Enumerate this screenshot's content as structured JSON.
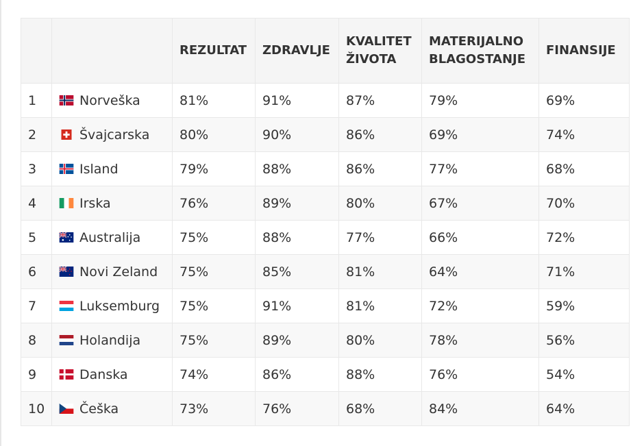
{
  "table": {
    "headers": [
      "",
      "",
      "REZULTAT",
      "ZDRAVLJE",
      "KVALITET ŽIVOTA",
      "MATERIJALNO BLAGOSTANJE",
      "FINANSIJE"
    ],
    "rows": [
      {
        "rank": "1",
        "flag": "norway-flag-icon",
        "country": "Norveška",
        "rezultat": "81%",
        "zdravlje": "91%",
        "kvalitet": "87%",
        "materijalno": "79%",
        "finansije": "69%"
      },
      {
        "rank": "2",
        "flag": "switzerland-flag-icon",
        "country": "Švajcarska",
        "rezultat": "80%",
        "zdravlje": "90%",
        "kvalitet": "86%",
        "materijalno": "69%",
        "finansije": "74%"
      },
      {
        "rank": "3",
        "flag": "iceland-flag-icon",
        "country": "Island",
        "rezultat": "79%",
        "zdravlje": "88%",
        "kvalitet": "86%",
        "materijalno": "77%",
        "finansije": "68%"
      },
      {
        "rank": "4",
        "flag": "ireland-flag-icon",
        "country": "Irska",
        "rezultat": "76%",
        "zdravlje": "89%",
        "kvalitet": "80%",
        "materijalno": "67%",
        "finansije": "70%"
      },
      {
        "rank": "5",
        "flag": "australia-flag-icon",
        "country": "Australija",
        "rezultat": "75%",
        "zdravlje": "88%",
        "kvalitet": "77%",
        "materijalno": "66%",
        "finansije": "72%"
      },
      {
        "rank": "6",
        "flag": "new-zealand-flag-icon",
        "country": "Novi Zeland",
        "rezultat": "75%",
        "zdravlje": "85%",
        "kvalitet": "81%",
        "materijalno": "64%",
        "finansije": "71%"
      },
      {
        "rank": "7",
        "flag": "luxembourg-flag-icon",
        "country": "Luksemburg",
        "rezultat": "75%",
        "zdravlje": "91%",
        "kvalitet": "81%",
        "materijalno": "72%",
        "finansije": "59%"
      },
      {
        "rank": "8",
        "flag": "netherlands-flag-icon",
        "country": "Holandija",
        "rezultat": "75%",
        "zdravlje": "89%",
        "kvalitet": "80%",
        "materijalno": "78%",
        "finansije": "56%"
      },
      {
        "rank": "9",
        "flag": "denmark-flag-icon",
        "country": "Danska",
        "rezultat": "74%",
        "zdravlje": "86%",
        "kvalitet": "88%",
        "materijalno": "76%",
        "finansije": "54%"
      },
      {
        "rank": "10",
        "flag": "czechia-flag-icon",
        "country": "Češka",
        "rezultat": "73%",
        "zdravlje": "76%",
        "kvalitet": "68%",
        "materijalno": "84%",
        "finansije": "64%"
      }
    ]
  }
}
